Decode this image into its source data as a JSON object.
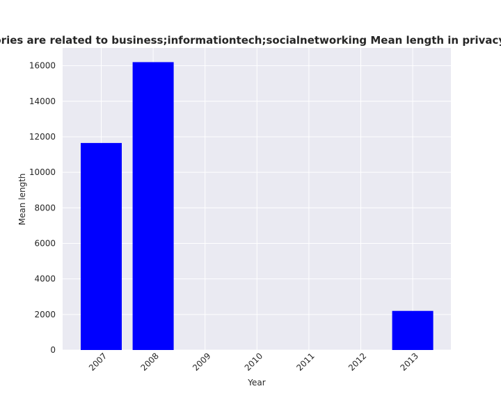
{
  "chart_data": {
    "type": "bar",
    "title": "Categories are related to business;informationtech;socialnetworking Mean length in privacy policies",
    "xlabel": "Year",
    "ylabel": "Mean length",
    "categories": [
      "2007",
      "2008",
      "2009",
      "2010",
      "2011",
      "2012",
      "2013"
    ],
    "values": [
      11650,
      16200,
      0,
      0,
      0,
      0,
      2200
    ],
    "ylim": [
      0,
      17000
    ],
    "yticks": [
      0,
      2000,
      4000,
      6000,
      8000,
      10000,
      12000,
      14000,
      16000
    ],
    "bar_color": "#0000ff",
    "grid": true
  }
}
